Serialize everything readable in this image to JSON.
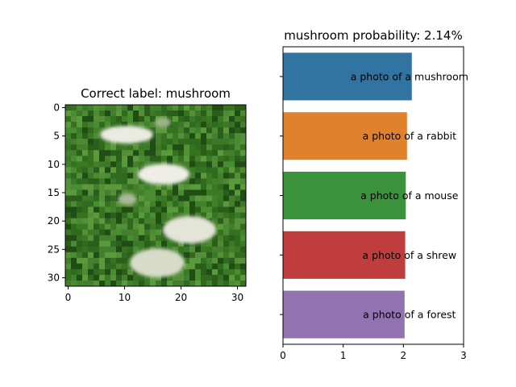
{
  "chart_data": [
    {
      "type": "image",
      "title": "Correct label: mushroom",
      "xticks": [
        "0",
        "10",
        "20",
        "30"
      ],
      "yticks": [
        "0",
        "5",
        "10",
        "15",
        "20",
        "25",
        "30"
      ],
      "xlim": [
        -0.5,
        31.5
      ],
      "ylim": [
        31.5,
        -0.5
      ],
      "image_size": [
        32,
        32
      ],
      "image_content": "low-resolution photo of white mushroom caps on green grass"
    },
    {
      "type": "bar",
      "orientation": "horizontal",
      "title": "mushroom probability: 2.14%",
      "categories": [
        "a photo of a mushroom",
        "a photo of a rabbit",
        "a photo of a mouse",
        "a photo of a shrew",
        "a photo of a forest"
      ],
      "values": [
        2.14,
        2.06,
        2.04,
        2.03,
        2.02
      ],
      "colors": [
        "#3274a1",
        "#e1812c",
        "#3a923a",
        "#c03d3e",
        "#9372b2"
      ],
      "xlim": [
        0,
        3
      ],
      "xticks": [
        "0",
        "1",
        "2",
        "3"
      ],
      "xlabel": "",
      "ylabel": "",
      "grid": false
    }
  ]
}
